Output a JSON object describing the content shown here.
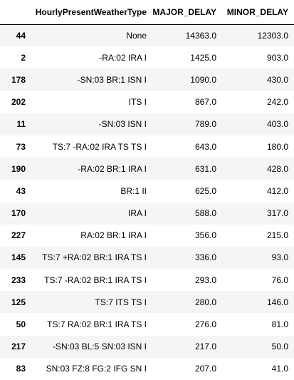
{
  "table": {
    "columns": {
      "index": "",
      "weather": "HourlyPresentWeatherType",
      "major": "MAJOR_DELAY",
      "minor": "MINOR_DELAY"
    },
    "rows": [
      {
        "index": "44",
        "weather": "None",
        "major": "14363.0",
        "minor": "12303.0"
      },
      {
        "index": "2",
        "weather": "-RA:02 IRA I",
        "major": "1425.0",
        "minor": "903.0"
      },
      {
        "index": "178",
        "weather": "-SN:03 BR:1 ISN I",
        "major": "1090.0",
        "minor": "430.0"
      },
      {
        "index": "202",
        "weather": "ITS I",
        "major": "867.0",
        "minor": "242.0"
      },
      {
        "index": "11",
        "weather": "-SN:03 ISN I",
        "major": "789.0",
        "minor": "403.0"
      },
      {
        "index": "73",
        "weather": "TS:7 -RA:02 IRA TS TS I",
        "major": "643.0",
        "minor": "180.0"
      },
      {
        "index": "190",
        "weather": "-RA:02 BR:1 IRA I",
        "major": "631.0",
        "minor": "428.0"
      },
      {
        "index": "43",
        "weather": "BR:1 II",
        "major": "625.0",
        "minor": "412.0"
      },
      {
        "index": "170",
        "weather": "IRA I",
        "major": "588.0",
        "minor": "317.0"
      },
      {
        "index": "227",
        "weather": "RA:02 BR:1 IRA I",
        "major": "356.0",
        "minor": "215.0"
      },
      {
        "index": "145",
        "weather": "TS:7 +RA:02 BR:1 IRA TS I",
        "major": "336.0",
        "minor": "93.0"
      },
      {
        "index": "233",
        "weather": "TS:7 -RA:02 BR:1 IRA TS I",
        "major": "293.0",
        "minor": "76.0"
      },
      {
        "index": "125",
        "weather": "TS:7 ITS TS I",
        "major": "280.0",
        "minor": "146.0"
      },
      {
        "index": "50",
        "weather": "TS:7 RA:02 BR:1 IRA TS I",
        "major": "276.0",
        "minor": "81.0"
      },
      {
        "index": "217",
        "weather": "-SN:03 BL:5 SN:03 ISN I",
        "major": "217.0",
        "minor": "50.0"
      },
      {
        "index": "83",
        "weather": "SN:03 FZ:8 FG:2 IFG SN I",
        "major": "207.0",
        "minor": "41.0"
      }
    ]
  }
}
